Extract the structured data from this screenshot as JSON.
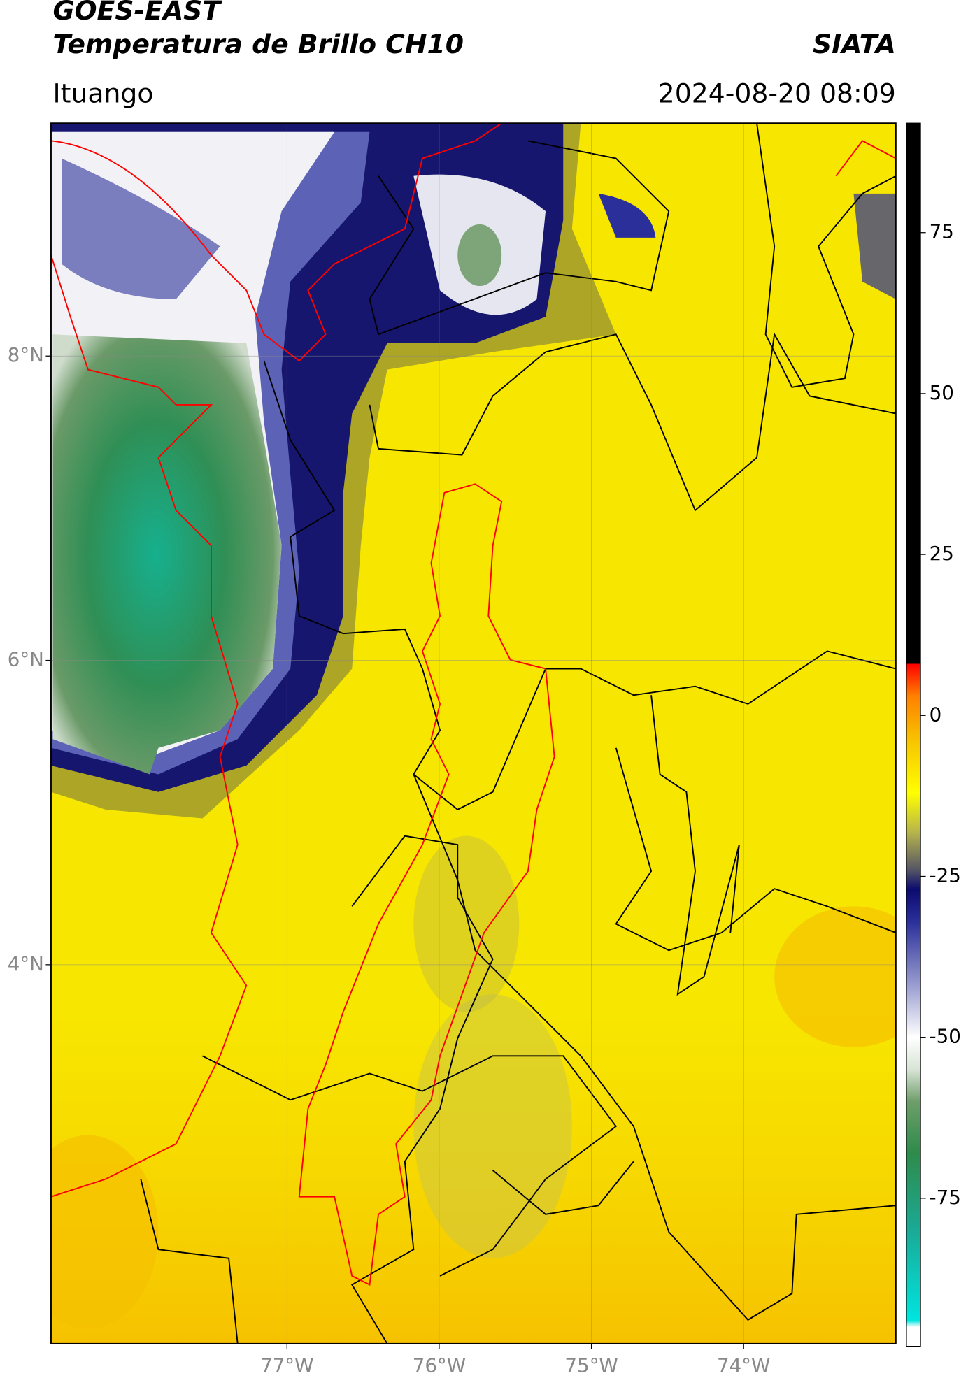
{
  "header": {
    "title": "GOES-EAST",
    "subtitle": "Temperatura de Brillo CH10",
    "source": "SIATA",
    "location": "Ituango",
    "datetime": "2024-08-20 08:09"
  },
  "map": {
    "xlim": [
      -78.55,
      -73.0
    ],
    "ylim": [
      1.51,
      9.53
    ],
    "xticks": [
      {
        "value": -77,
        "label": "77°W"
      },
      {
        "value": -76,
        "label": "76°W"
      },
      {
        "value": -75,
        "label": "75°W"
      },
      {
        "value": -74,
        "label": "74°W"
      }
    ],
    "yticks": [
      {
        "value": 8,
        "label": "8°N"
      },
      {
        "value": 6,
        "label": "6°N"
      },
      {
        "value": 4,
        "label": "4°N"
      }
    ],
    "grid": true
  },
  "colorbar": {
    "lim": [
      -98,
      92
    ],
    "ticks": [
      75,
      50,
      25,
      0,
      -25,
      -50,
      -75
    ],
    "stops": [
      {
        "value": -98,
        "color": "#ffffff"
      },
      {
        "value": -95,
        "color": "#ffffff"
      },
      {
        "value": -94,
        "color": "#00e5e0"
      },
      {
        "value": -80,
        "color": "#1aaa96"
      },
      {
        "value": -68,
        "color": "#2e8b4a"
      },
      {
        "value": -60,
        "color": "#6e9e6a"
      },
      {
        "value": -55,
        "color": "#d8e4d6"
      },
      {
        "value": -50,
        "color": "#ffffff"
      },
      {
        "value": -42,
        "color": "#9a9ed0"
      },
      {
        "value": -32,
        "color": "#2a2f99"
      },
      {
        "value": -27,
        "color": "#0b0b6e"
      },
      {
        "value": -24,
        "color": "#555566"
      },
      {
        "value": -18,
        "color": "#b9b74a"
      },
      {
        "value": -12,
        "color": "#ffff00"
      },
      {
        "value": -4,
        "color": "#f7c400"
      },
      {
        "value": 3,
        "color": "#ff8000"
      },
      {
        "value": 8,
        "color": "#ff0000"
      },
      {
        "value": 8.01,
        "color": "#000000"
      },
      {
        "value": 92,
        "color": "#000000"
      }
    ]
  }
}
